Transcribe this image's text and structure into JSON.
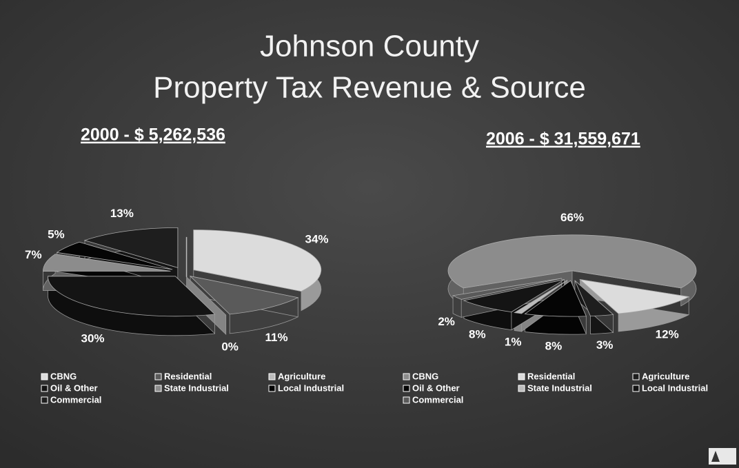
{
  "title": [
    "Johnson County",
    "Property Tax Revenue & Source"
  ],
  "chart_data": [
    {
      "type": "pie",
      "title": "2000 - $ 5,262,536",
      "categories": [
        "CBNG",
        "Residential",
        "Agriculture",
        "Oil & Other",
        "State Industrial",
        "Local Industrial",
        "Commercial"
      ],
      "values": [
        34,
        11,
        0,
        30,
        7,
        5,
        13
      ],
      "value_labels": [
        "34%",
        "11%",
        "0%",
        "30%",
        "7%",
        "5%",
        "13%"
      ],
      "colors": [
        "#dcdcdc",
        "#5a5a5a",
        "#bcbcbc",
        "#141414",
        "#8c8c8c",
        "#050505",
        "#1e1e1e"
      ]
    },
    {
      "type": "pie",
      "title": "2006 - $ 31,559,671",
      "categories": [
        "CBNG",
        "Residential",
        "Agriculture",
        "Oil & Other",
        "State Industrial",
        "Local Industrial",
        "Commercial"
      ],
      "values": [
        66,
        12,
        3,
        8,
        1,
        8,
        2
      ],
      "value_labels": [
        "66%",
        "12%",
        "3%",
        "8%",
        "1%",
        "8%",
        "2%"
      ],
      "colors": [
        "#8c8c8c",
        "#dcdcdc",
        "#1e1e1e",
        "#050505",
        "#bcbcbc",
        "#141414",
        "#5a5a5a"
      ]
    }
  ]
}
